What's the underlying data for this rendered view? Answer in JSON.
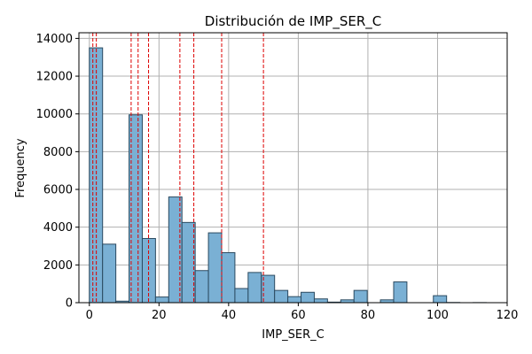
{
  "chart_data": {
    "type": "bar",
    "title": "Distribución de IMP_SER_C",
    "xlabel": "IMP_SER_C",
    "ylabel": "Frequency",
    "xlim": [
      -3,
      120
    ],
    "ylim": [
      0,
      14300
    ],
    "xticks": [
      0,
      20,
      40,
      60,
      80,
      100,
      120
    ],
    "yticks": [
      0,
      2000,
      4000,
      6000,
      8000,
      10000,
      12000,
      14000
    ],
    "grid": true,
    "bin_width": 3.8,
    "bins": [
      {
        "x0": 0.0,
        "value": 13500
      },
      {
        "x0": 3.8,
        "value": 3100
      },
      {
        "x0": 7.6,
        "value": 80
      },
      {
        "x0": 11.4,
        "value": 9950
      },
      {
        "x0": 15.2,
        "value": 3400
      },
      {
        "x0": 19.0,
        "value": 300
      },
      {
        "x0": 22.8,
        "value": 5600
      },
      {
        "x0": 26.6,
        "value": 4250
      },
      {
        "x0": 30.4,
        "value": 1700
      },
      {
        "x0": 34.2,
        "value": 3700
      },
      {
        "x0": 38.0,
        "value": 2650
      },
      {
        "x0": 41.8,
        "value": 750
      },
      {
        "x0": 45.6,
        "value": 1600
      },
      {
        "x0": 49.4,
        "value": 1450
      },
      {
        "x0": 53.2,
        "value": 650
      },
      {
        "x0": 57.0,
        "value": 320
      },
      {
        "x0": 60.8,
        "value": 550
      },
      {
        "x0": 64.6,
        "value": 200
      },
      {
        "x0": 68.4,
        "value": 30
      },
      {
        "x0": 72.2,
        "value": 150
      },
      {
        "x0": 76.0,
        "value": 650
      },
      {
        "x0": 79.8,
        "value": 0
      },
      {
        "x0": 83.6,
        "value": 150
      },
      {
        "x0": 87.4,
        "value": 1100
      },
      {
        "x0": 91.2,
        "value": 0
      },
      {
        "x0": 95.0,
        "value": 0
      },
      {
        "x0": 98.8,
        "value": 370
      },
      {
        "x0": 102.6,
        "value": 10
      },
      {
        "x0": 106.4,
        "value": 0
      },
      {
        "x0": 110.2,
        "value": 5
      }
    ],
    "vlines": [
      1,
      2,
      12,
      14,
      17,
      26,
      30,
      38,
      50
    ],
    "colors": {
      "bar_fill": "#7ab0d4",
      "bar_stroke": "#2b4a60",
      "grid": "#b0b0b0",
      "vline": "#dd0000"
    }
  }
}
